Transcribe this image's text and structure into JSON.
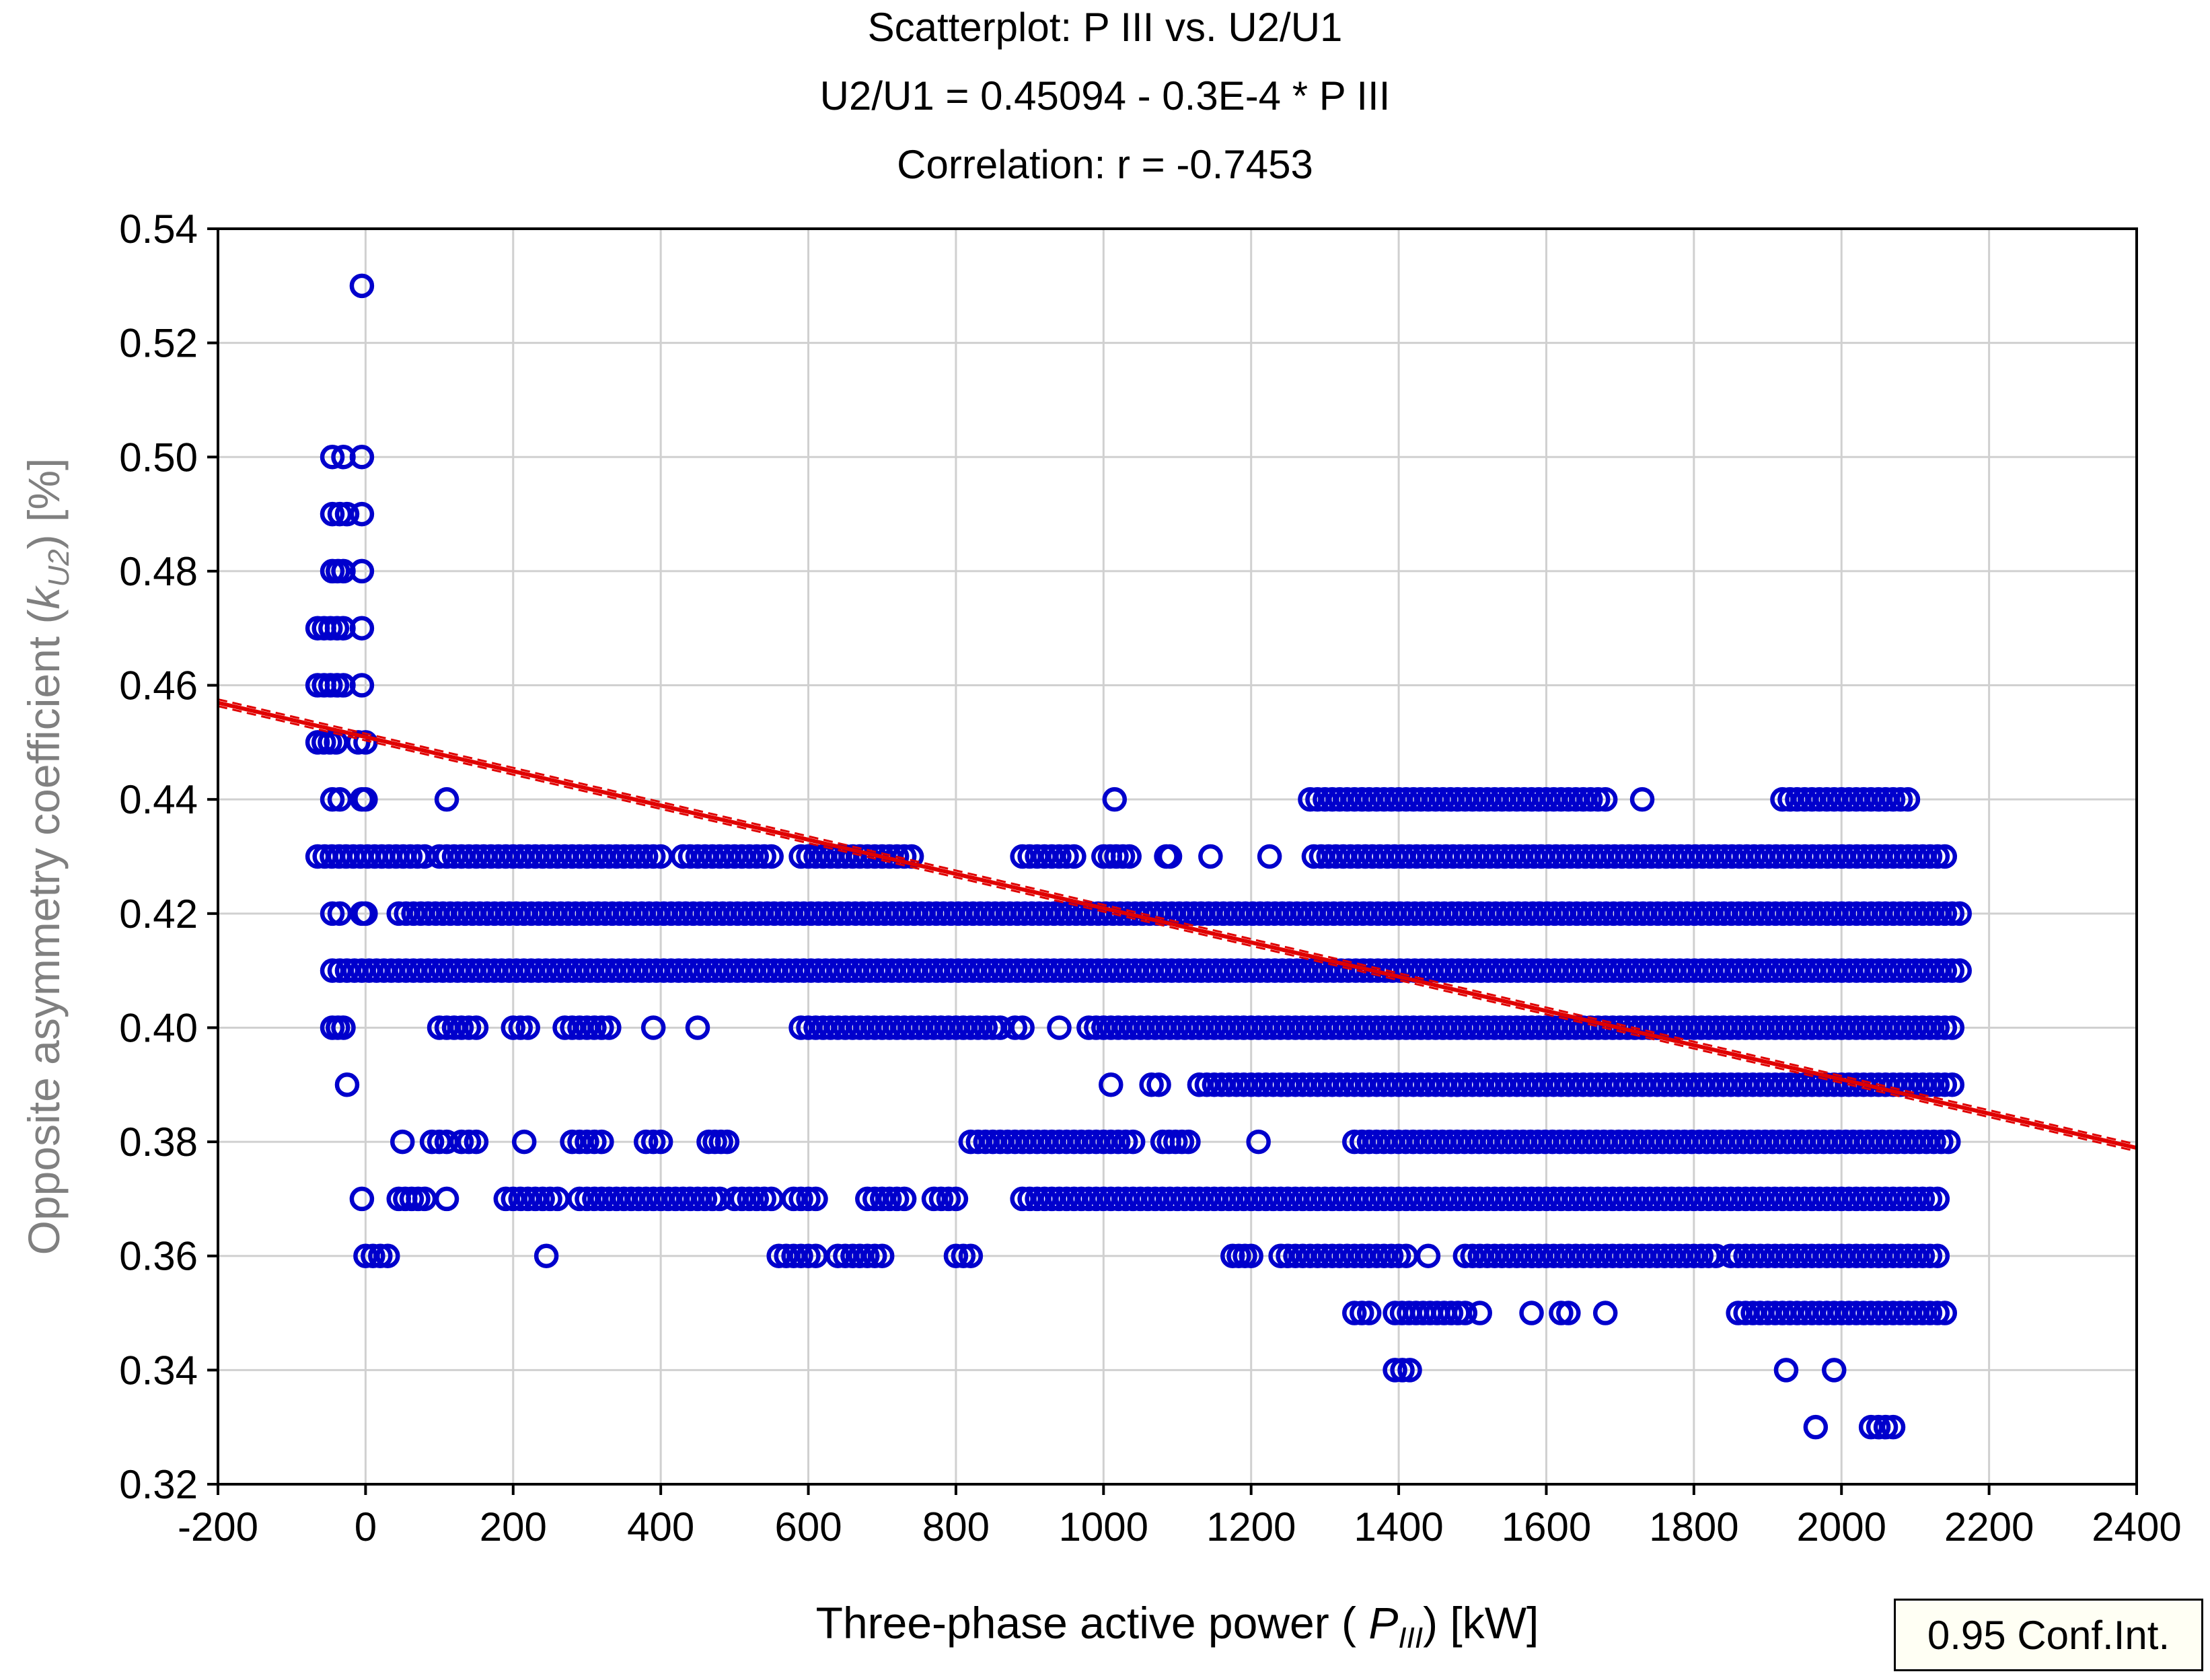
{
  "chart_data": {
    "type": "scatter",
    "title": "Scatterplot: P III vs. U2/U1",
    "subtitle_equation": "U2/U1 = 0.45094 - 0.3E-4  * P III",
    "subtitle_correlation": "Correlation: r =   -0.7453",
    "xlabel": {
      "prefix": "Three-phase active power ( ",
      "var": "P",
      "sub": "III",
      "suffix": ") [kW]"
    },
    "ylabel": {
      "prefix": "Opposite asymmetry coefficient (",
      "var": "k",
      "sub": "U2",
      "suffix": ") [%]"
    },
    "xlim": [
      -200,
      2400
    ],
    "ylim": [
      0.32,
      0.54
    ],
    "xticks": [
      -200,
      0,
      200,
      400,
      600,
      800,
      1000,
      1200,
      1400,
      1600,
      1800,
      2000,
      2200,
      2400
    ],
    "xtick_labels": [
      "-200",
      "0",
      "200",
      "400",
      "600",
      "800",
      "1000",
      "1200",
      "1400",
      "1600",
      "1800",
      "2000",
      "2200",
      "2400"
    ],
    "yticks": [
      0.32,
      0.34,
      0.36,
      0.38,
      0.4,
      0.42,
      0.44,
      0.46,
      0.48,
      0.5,
      0.52,
      0.54
    ],
    "ytick_labels": [
      "0.32",
      "0.34",
      "0.36",
      "0.38",
      "0.40",
      "0.42",
      "0.44",
      "0.46",
      "0.48",
      "0.50",
      "0.52",
      "0.54"
    ],
    "grid": true,
    "legend_label": "0.95 Conf.Int.",
    "legend_position": "bottom-right",
    "regression": {
      "intercept": 0.45094,
      "slope": -3e-05,
      "x_range": [
        -200,
        2400
      ]
    },
    "colors": {
      "points": "#0000cc",
      "regression": "#e00000",
      "grid": "#d0d0d0",
      "axis": "#000000",
      "ylabel": "#808080"
    },
    "bands": [
      {
        "y": 0.53,
        "segments": [
          [
            -5,
            -5
          ]
        ]
      },
      {
        "y": 0.5,
        "segments": [
          [
            -45,
            -45
          ],
          [
            -30,
            -30
          ],
          [
            -5,
            -5
          ]
        ]
      },
      {
        "y": 0.49,
        "segments": [
          [
            -45,
            -25
          ],
          [
            -5,
            -5
          ]
        ]
      },
      {
        "y": 0.48,
        "segments": [
          [
            -45,
            -30
          ],
          [
            -5,
            -5
          ]
        ]
      },
      {
        "y": 0.47,
        "segments": [
          [
            -65,
            -30
          ],
          [
            -5,
            -5
          ]
        ]
      },
      {
        "y": 0.46,
        "segments": [
          [
            -65,
            -30
          ],
          [
            -5,
            -5
          ]
        ]
      },
      {
        "y": 0.45,
        "segments": [
          [
            -65,
            -40
          ],
          [
            -10,
            0
          ]
        ]
      },
      {
        "y": 0.44,
        "segments": [
          [
            -45,
            -35
          ],
          [
            -5,
            0
          ],
          [
            110,
            110
          ],
          [
            1015,
            1015
          ],
          [
            1280,
            1500
          ],
          [
            1510,
            1680
          ],
          [
            1730,
            1730
          ],
          [
            1920,
            2090
          ]
        ]
      },
      {
        "y": 0.43,
        "segments": [
          [
            -65,
            80
          ],
          [
            100,
            400
          ],
          [
            430,
            550
          ],
          [
            590,
            740
          ],
          [
            890,
            960
          ],
          [
            1000,
            1035
          ],
          [
            1085,
            1090
          ],
          [
            1145,
            1145
          ],
          [
            1225,
            1225
          ],
          [
            1285,
            2140
          ]
        ]
      },
      {
        "y": 0.42,
        "segments": [
          [
            -45,
            -35
          ],
          [
            -5,
            0
          ],
          [
            45,
            2160
          ]
        ]
      },
      {
        "y": 0.41,
        "segments": [
          [
            -45,
            2160
          ]
        ]
      },
      {
        "y": 0.4,
        "segments": [
          [
            -45,
            -30
          ],
          [
            100,
            150
          ],
          [
            200,
            220
          ],
          [
            270,
            330
          ],
          [
            390,
            390
          ],
          [
            450,
            450
          ],
          [
            590,
            860
          ],
          [
            880,
            890
          ],
          [
            940,
            940
          ],
          [
            980,
            2150
          ]
        ]
      },
      {
        "y": 0.39,
        "segments": [
          [
            -25,
            -25
          ],
          [
            1010,
            1010
          ],
          [
            1065,
            1075
          ],
          [
            1130,
            2150
          ]
        ]
      },
      {
        "y": 0.38,
        "segments": [
          [
            50,
            50
          ],
          [
            90,
            110
          ],
          [
            130,
            150
          ],
          [
            215,
            215
          ],
          [
            280,
            320
          ],
          [
            380,
            400
          ],
          [
            465,
            490
          ],
          [
            820,
            1040
          ],
          [
            1080,
            1115
          ],
          [
            1210,
            1210
          ],
          [
            1340,
            2145
          ]
        ]
      },
      {
        "y": 0.37,
        "segments": [
          [
            -5,
            -5
          ],
          [
            45,
            80
          ],
          [
            110,
            110
          ],
          [
            190,
            260
          ],
          [
            290,
            480
          ],
          [
            500,
            550
          ],
          [
            580,
            610
          ],
          [
            680,
            730
          ],
          [
            770,
            800
          ],
          [
            890,
            2130
          ]
        ]
      },
      {
        "y": 0.36,
        "segments": [
          [
            0,
            30
          ],
          [
            245,
            245
          ],
          [
            560,
            610
          ],
          [
            640,
            700
          ],
          [
            800,
            820
          ],
          [
            1175,
            1200
          ],
          [
            1240,
            1410
          ],
          [
            1440,
            1440
          ],
          [
            1490,
            1830
          ],
          [
            1850,
            2130
          ]
        ]
      },
      {
        "y": 0.35,
        "segments": [
          [
            1340,
            1360
          ],
          [
            1395,
            1490
          ],
          [
            1510,
            1510
          ],
          [
            1580,
            1580
          ],
          [
            1620,
            1630
          ],
          [
            1680,
            1680
          ],
          [
            1860,
            2140
          ]
        ]
      },
      {
        "y": 0.34,
        "segments": [
          [
            1395,
            1415
          ],
          [
            1925,
            1925
          ],
          [
            1990,
            1990
          ]
        ]
      },
      {
        "y": 0.33,
        "segments": [
          [
            1965,
            1965
          ],
          [
            2040,
            2070
          ]
        ]
      }
    ]
  }
}
